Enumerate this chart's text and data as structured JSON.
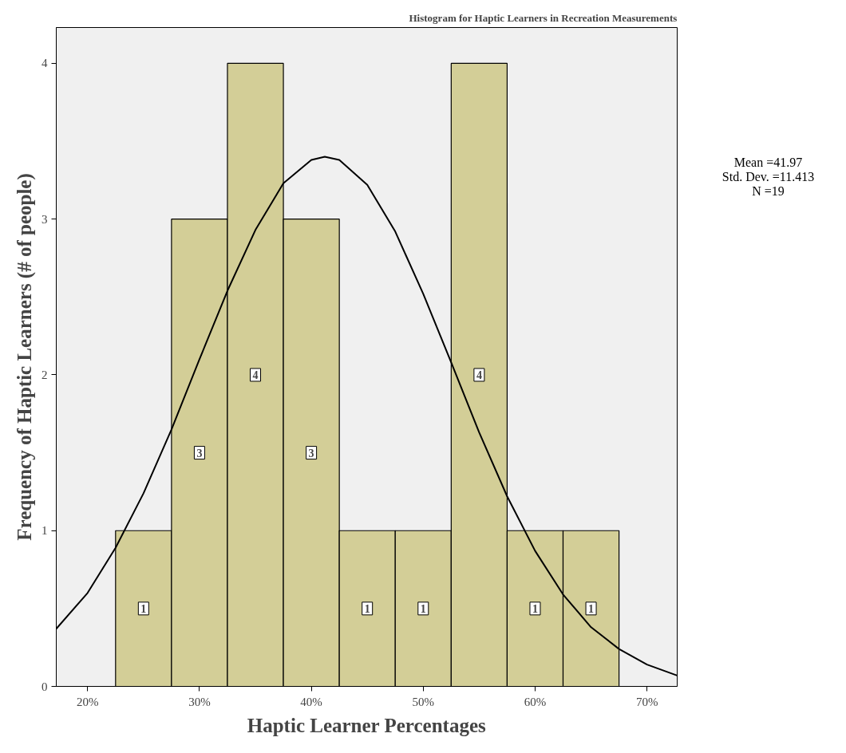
{
  "chart_data": {
    "type": "histogram",
    "title": "Histogram for Haptic Learners in Recreation Measurements",
    "xlabel": "Haptic Learner Percentages",
    "ylabel": "Frequency of Haptic Learners (# of people)",
    "bins": [
      22.5,
      27.5,
      32.5,
      37.5,
      42.5,
      47.5,
      52.5,
      57.5,
      62.5,
      67.5
    ],
    "values": [
      1,
      3,
      4,
      3,
      1,
      1,
      4,
      1,
      1
    ],
    "color": "#d3ce97",
    "value_labels": [
      "1",
      "3",
      "4",
      "3",
      "1",
      "1",
      "4",
      "1",
      "1"
    ],
    "series": [
      {
        "type": "line",
        "color": "#000000",
        "x": [
          17.2,
          20,
          22.5,
          25,
          27.5,
          30,
          32.5,
          35,
          37.5,
          40,
          41.2,
          42.5,
          45,
          47.5,
          50,
          52.5,
          55,
          57.5,
          60,
          62.5,
          65,
          67.5,
          70,
          72.7
        ],
        "values": [
          0.37,
          0.6,
          0.89,
          1.24,
          1.65,
          2.1,
          2.54,
          2.93,
          3.23,
          3.38,
          3.4,
          3.38,
          3.22,
          2.92,
          2.52,
          2.08,
          1.63,
          1.22,
          0.87,
          0.59,
          0.38,
          0.24,
          0.14,
          0.07
        ]
      }
    ],
    "xlim": [
      17.2,
      72.7
    ],
    "ylim": [
      0,
      4.23
    ],
    "xticks": [
      {
        "value": 20,
        "label": "20%"
      },
      {
        "value": 30,
        "label": "30%"
      },
      {
        "value": 40,
        "label": "40%"
      },
      {
        "value": 50,
        "label": "50%"
      },
      {
        "value": 60,
        "label": "60%"
      },
      {
        "value": 70,
        "label": "70%"
      }
    ],
    "yticks": [
      0,
      1,
      2,
      3,
      4
    ],
    "grid": false,
    "annotations": [
      "Mean =41.97",
      "Std. Dev. =11.413",
      "N =19"
    ]
  }
}
